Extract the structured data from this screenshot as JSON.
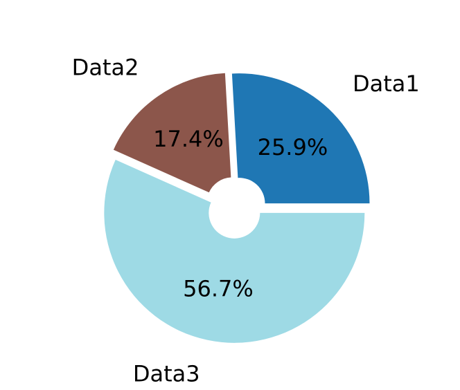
{
  "chart_data": {
    "type": "pie",
    "title": "",
    "categories": [
      "Data1",
      "Data2",
      "Data3"
    ],
    "values": [
      25.9,
      17.4,
      56.7
    ],
    "percent_labels": [
      "25.9%",
      "17.4%",
      "56.7%"
    ],
    "colors": [
      "#1f77b4",
      "#8c564b",
      "#9edae5"
    ],
    "exploded": true,
    "donut_hole": true,
    "start_angle_deg": 0,
    "direction": "counterclockwise",
    "legend": "none"
  }
}
